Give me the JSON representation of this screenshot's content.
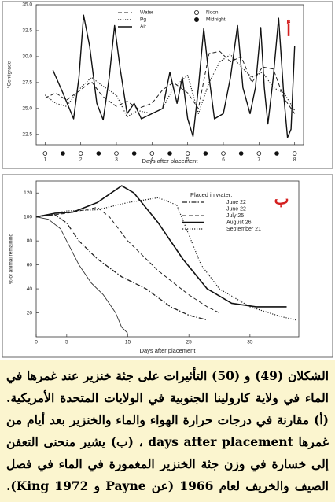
{
  "chart_data": [
    {
      "type": "line",
      "annotation": "أ",
      "ylabel": "°Centigrade",
      "xlabel": "Days after placement",
      "xlim": [
        0.75,
        8.25
      ],
      "xticks": [
        1,
        2,
        3,
        4,
        5,
        6,
        7,
        8
      ],
      "ylim": [
        21.5,
        35.0
      ],
      "yticks": [
        22.5,
        {
          "value": 25,
          "label": "25.0"
        },
        27.5,
        {
          "value": 30,
          "label": "30.0"
        },
        32.5,
        {
          "value": 35,
          "label": "35.0"
        }
      ],
      "series": [
        {
          "name": "Water",
          "color": "#222",
          "line_style": "dashed",
          "width": 1,
          "x": [
            1,
            1.3,
            1.6,
            2,
            2.3,
            2.6,
            3,
            3.3,
            3.6,
            4,
            4.3,
            4.6,
            5,
            5.3,
            5.6,
            5.9,
            6.2,
            6.5,
            6.8,
            7.1,
            7.4,
            7.7,
            8
          ],
          "values": [
            26.0,
            26.5,
            25.8,
            26.8,
            27.6,
            26.2,
            25.2,
            25.7,
            25.0,
            25.5,
            26.8,
            27.5,
            26.5,
            25.0,
            30.3,
            30.5,
            29.5,
            30.0,
            27.5,
            29.0,
            28.8,
            26.0,
            24.5
          ]
        },
        {
          "name": "Pg",
          "color": "#222",
          "line_style": "dotted",
          "width": 1.2,
          "x": [
            1,
            1.3,
            1.6,
            2,
            2.3,
            2.6,
            3,
            3.3,
            3.6,
            4,
            4.3,
            4.6,
            5,
            5.3,
            5.6,
            5.9,
            6.2,
            6.5,
            6.8,
            7.1,
            7.4,
            7.7,
            8
          ],
          "values": [
            26.3,
            25.5,
            25.2,
            27.0,
            28.0,
            27.2,
            26.3,
            24.2,
            24.8,
            24.5,
            25.0,
            27.0,
            28.2,
            24.5,
            27.5,
            29.5,
            30.2,
            29.0,
            28.0,
            28.5,
            27.0,
            26.5,
            24.8
          ]
        },
        {
          "name": "Air",
          "color": "#111",
          "line_style": "solid",
          "width": 1.4,
          "x": [
            1.22,
            1.5,
            1.8,
            1.95,
            2.08,
            2.25,
            2.45,
            2.63,
            2.8,
            2.95,
            3.1,
            3.3,
            3.5,
            3.7,
            4.0,
            4.3,
            4.5,
            4.7,
            4.85,
            5.0,
            5.15,
            5.3,
            5.45,
            5.6,
            5.75,
            6.0,
            6.2,
            6.4,
            6.55,
            6.75,
            6.9,
            7.05,
            7.15,
            7.25,
            7.4,
            7.55,
            7.7,
            7.8,
            7.9,
            8.0
          ],
          "values": [
            28.7,
            26.5,
            24.0,
            28.0,
            34.0,
            31.0,
            25.5,
            23.9,
            28.0,
            33.0,
            29.0,
            24.5,
            25.5,
            24.0,
            24.5,
            25.0,
            28.5,
            25.5,
            28.0,
            24.0,
            22.3,
            27.0,
            32.7,
            28.0,
            24.0,
            24.5,
            28.0,
            33.0,
            27.0,
            24.5,
            27.0,
            32.8,
            27.0,
            23.5,
            28.0,
            33.7,
            26.0,
            22.2,
            23.0,
            31.0
          ]
        }
      ],
      "markers": [
        {
          "name": "Noon",
          "filled": false,
          "x": [
            1,
            2,
            3,
            4,
            5,
            6,
            7,
            8
          ]
        },
        {
          "name": "Midnight",
          "filled": true,
          "x": [
            1.5,
            2.5,
            3.5,
            4.5,
            5.5,
            6.5,
            7.5
          ]
        }
      ]
    },
    {
      "type": "line",
      "annotation": "ب",
      "ylabel": "% of animal remaining",
      "xlabel": "Days after placement",
      "legend_title": "Placed in water:",
      "xlim": [
        0,
        43
      ],
      "xticks": [
        0,
        5,
        15,
        25,
        35
      ],
      "ylim": [
        0,
        130
      ],
      "yticks": [
        20,
        40,
        60,
        80,
        100,
        120
      ],
      "series": [
        {
          "name": "June 22",
          "color": "#222",
          "line_style": "dashdot",
          "width": 1.3,
          "x": [
            0,
            3,
            5,
            7,
            10,
            14,
            18,
            22,
            25,
            28
          ],
          "values": [
            100,
            102,
            95,
            80,
            65,
            50,
            40,
            25,
            18,
            14
          ]
        },
        {
          "name": "June 22",
          "color": "#333",
          "line_style": "solid",
          "width": 0.9,
          "x": [
            0,
            2,
            4,
            5,
            7,
            9,
            11,
            13,
            14,
            15
          ],
          "values": [
            100,
            98,
            90,
            80,
            60,
            45,
            35,
            20,
            8,
            3
          ]
        },
        {
          "name": "July 25",
          "color": "#222",
          "line_style": "dashed",
          "width": 1,
          "x": [
            0,
            5,
            10,
            12,
            15,
            20,
            25,
            28,
            30
          ],
          "values": [
            100,
            103,
            108,
            100,
            80,
            55,
            35,
            25,
            20
          ]
        },
        {
          "name": "August 26",
          "color": "#111",
          "line_style": "solid",
          "width": 1.6,
          "x": [
            0,
            3,
            6,
            10,
            14,
            16,
            20,
            24,
            28,
            32,
            36,
            41
          ],
          "values": [
            100,
            103,
            104,
            112,
            126,
            120,
            95,
            65,
            40,
            28,
            25,
            25
          ]
        },
        {
          "name": "September 21",
          "color": "#222",
          "line_style": "dotted",
          "width": 1.2,
          "x": [
            0,
            5,
            10,
            15,
            20,
            23,
            27,
            30,
            35,
            40,
            42.5
          ],
          "values": [
            100,
            105,
            106,
            112,
            116,
            110,
            60,
            40,
            25,
            17,
            14
          ]
        }
      ]
    }
  ],
  "caption": {
    "lines": [
      "الشكلان (49) و (50) التأثيرات على جثة خنزير عند غمرها في",
      "الماء في ولاية كارولينا الجنوبية في الولايات المتحدة الأمريكية.",
      "(أ) مقارنة في درجات حرارة الهواء والماء والخنزير بعد أيام من",
      "غمرها days after placement ، (ب) يشير منحنى التعفن",
      "إلى خسارة في وزن جثة الخنزير المغمورة في الماء في فصل",
      "الصيف والخريف لعام 1966 (عن Payne و King 1972)."
    ]
  }
}
